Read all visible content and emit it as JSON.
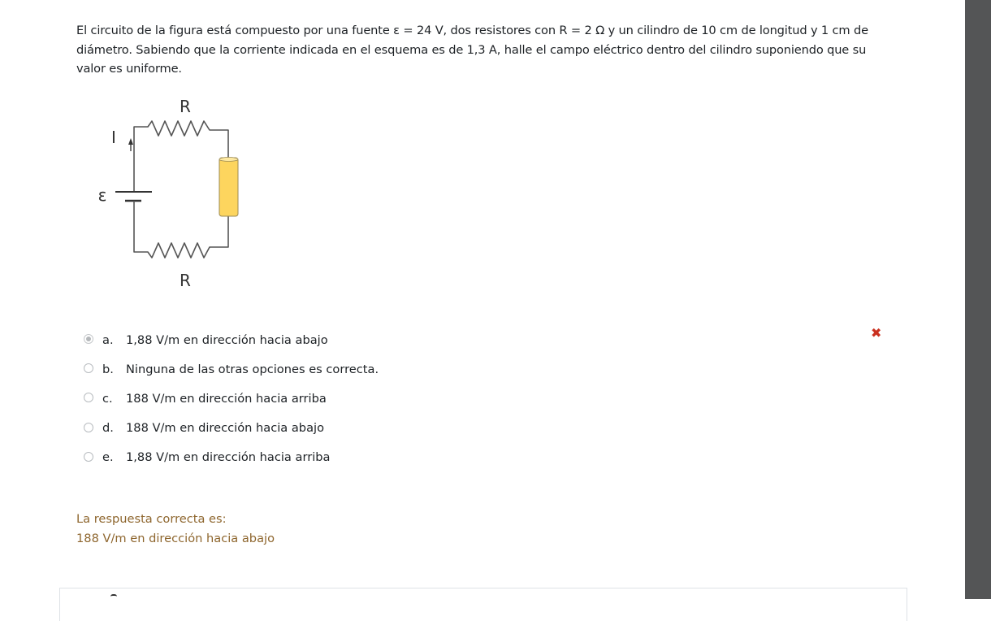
{
  "question": {
    "text": "El circuito de la figura está compuesto por una fuente ε = 24 V, dos resistores con R = 2 Ω y un cilindro de 10 cm de longitud y 1 cm de diámetro. Sabiendo que la corriente indicada en el esquema es de 1,3 A, halle el campo eléctrico dentro del cilindro suponiendo que su valor es uniforme."
  },
  "figure": {
    "top_resistor_label": "R",
    "bottom_resistor_label": "R",
    "current_label": "I",
    "emf_label": "ε",
    "cylinder_color": "#fdd55e"
  },
  "options": [
    {
      "letter": "a.",
      "text": "1,88 V/m en dirección hacia abajo",
      "selected": true,
      "incorrect": true
    },
    {
      "letter": "b.",
      "text": "Ninguna de las otras opciones es correcta.",
      "selected": false
    },
    {
      "letter": "c.",
      "text": "188 V/m en dirección hacia arriba",
      "selected": false
    },
    {
      "letter": "d.",
      "text": "188 V/m en dirección hacia abajo",
      "selected": false
    },
    {
      "letter": "e.",
      "text": "1,88 V/m en dirección hacia arriba",
      "selected": false
    }
  ],
  "incorrect_icon": "cross-icon",
  "incorrect_symbol": "✖",
  "feedback": {
    "label": "La respuesta correcta es:",
    "answer": "188 V/m en dirección hacia abajo"
  },
  "colors": {
    "feedback": "#8e662e",
    "incorrect": "#ca3120",
    "scrollbar": "#545556"
  }
}
